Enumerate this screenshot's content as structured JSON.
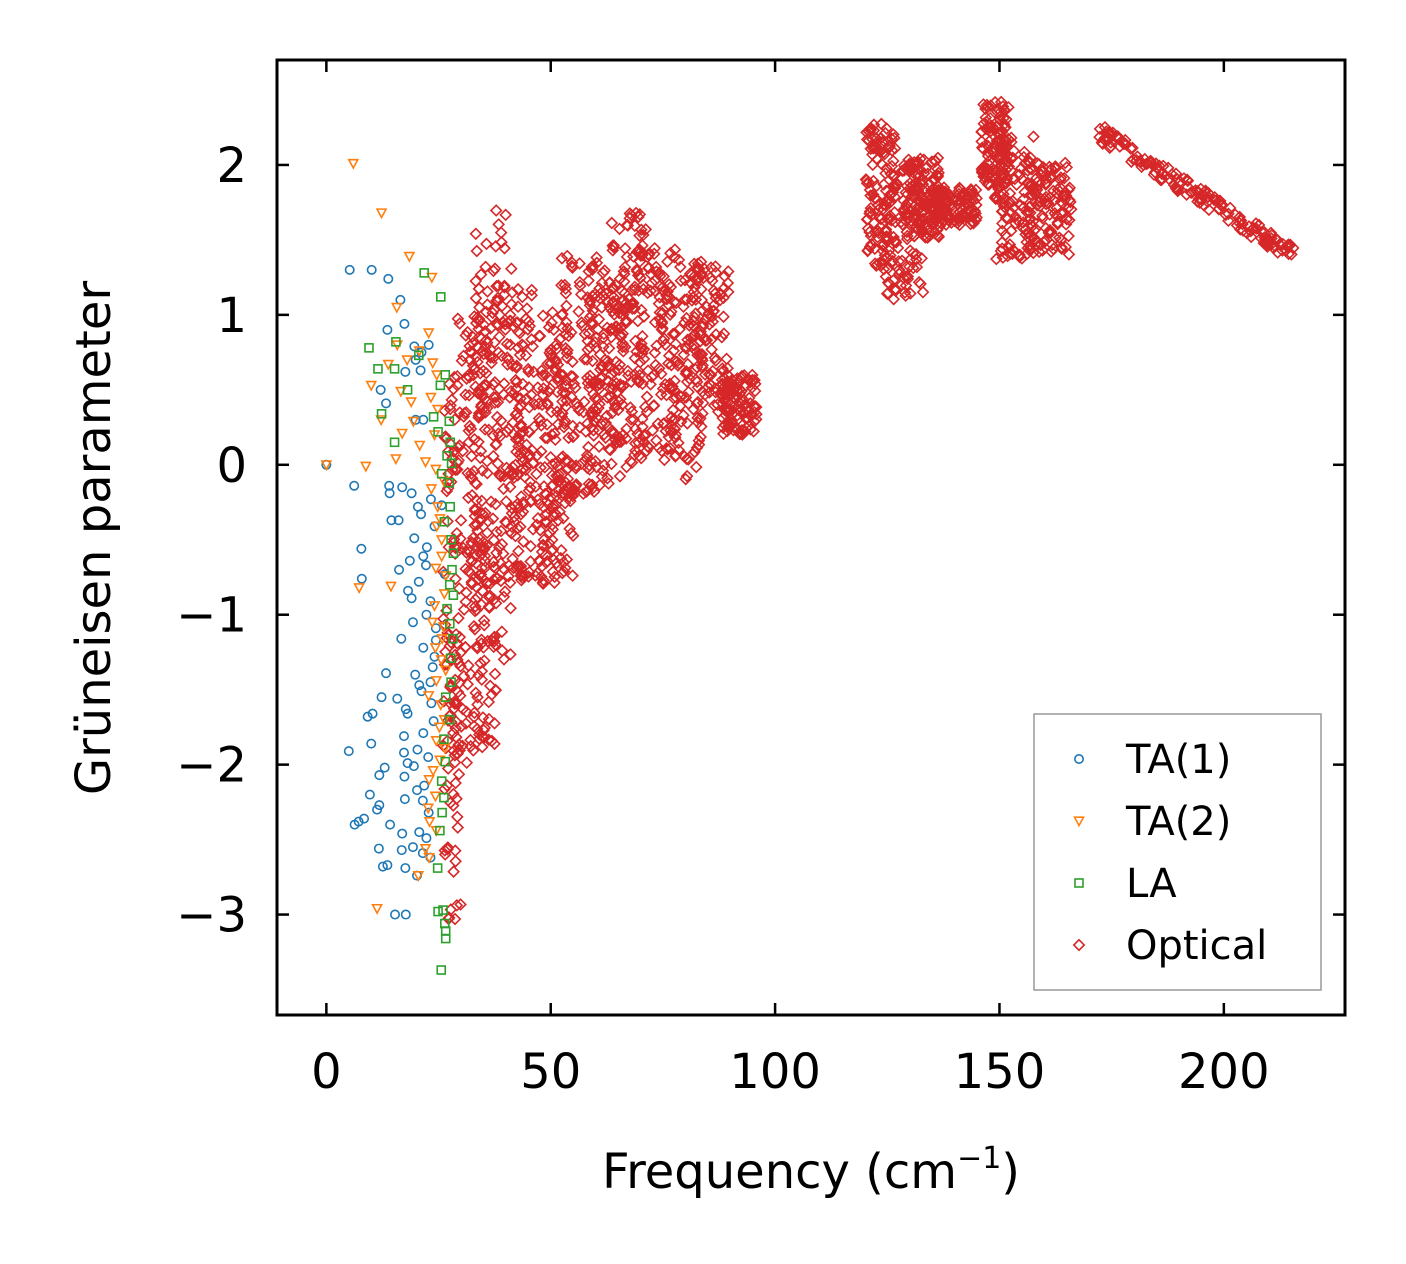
{
  "chart_data": {
    "type": "scatter",
    "title": "",
    "xlabel": "Frequency (cm",
    "xlabel_sup": "−1",
    "xlabel_suffix": ")",
    "ylabel": "Grüneisen parameter",
    "xlim": [
      -11,
      227
    ],
    "ylim": [
      -3.67,
      2.7
    ],
    "x_ticks": [
      0,
      50,
      100,
      150,
      200
    ],
    "x_tick_labels": [
      "0",
      "50",
      "100",
      "150",
      "200"
    ],
    "y_ticks": [
      -3,
      -2,
      -1,
      0,
      1,
      2
    ],
    "y_tick_labels": [
      "−3",
      "−2",
      "−1",
      "0",
      "1",
      "2"
    ],
    "grid": false,
    "legend_position": "lower-right",
    "series": [
      {
        "name": "TA(1)",
        "marker": "circle",
        "color": "#1f77b4",
        "points": [
          [
            0,
            0
          ],
          [
            5.2,
            1.3
          ],
          [
            10.1,
            1.3
          ],
          [
            13.8,
            1.24
          ],
          [
            16.5,
            1.1
          ],
          [
            17.4,
            0.94
          ],
          [
            13.6,
            0.9
          ],
          [
            19.6,
            0.79
          ],
          [
            19.9,
            0.7
          ],
          [
            21.2,
            0.75
          ],
          [
            22.8,
            0.8
          ],
          [
            21.0,
            0.63
          ],
          [
            17.6,
            0.62
          ],
          [
            12.1,
            0.5
          ],
          [
            13.3,
            0.41
          ],
          [
            19.9,
            0.3
          ],
          [
            21.6,
            0.3
          ],
          [
            6.2,
            -0.14
          ],
          [
            14.0,
            -0.14
          ],
          [
            14.1,
            -0.19
          ],
          [
            16.9,
            -0.15
          ],
          [
            19.0,
            -0.19
          ],
          [
            20.4,
            -0.28
          ],
          [
            23.3,
            -0.23
          ],
          [
            25.7,
            -0.27
          ],
          [
            21.1,
            -0.33
          ],
          [
            14.5,
            -0.37
          ],
          [
            16.1,
            -0.37
          ],
          [
            24.1,
            -0.41
          ],
          [
            19.6,
            -0.49
          ],
          [
            7.8,
            -0.56
          ],
          [
            22.4,
            -0.55
          ],
          [
            21.6,
            -0.61
          ],
          [
            18.6,
            -0.64
          ],
          [
            22.2,
            -0.67
          ],
          [
            16.2,
            -0.7
          ],
          [
            26.4,
            -0.73
          ],
          [
            7.9,
            -0.76
          ],
          [
            20.6,
            -0.78
          ],
          [
            18.2,
            -0.84
          ],
          [
            19.0,
            -0.89
          ],
          [
            23.2,
            -0.91
          ],
          [
            22.3,
            -1.0
          ],
          [
            19.3,
            -1.05
          ],
          [
            24.4,
            -1.09
          ],
          [
            24.4,
            -1.17
          ],
          [
            16.7,
            -1.16
          ],
          [
            21.6,
            -1.22
          ],
          [
            24.1,
            -1.28
          ],
          [
            23.7,
            -1.35
          ],
          [
            19.8,
            -1.4
          ],
          [
            13.3,
            -1.39
          ],
          [
            20.7,
            -1.47
          ],
          [
            21.2,
            -1.51
          ],
          [
            23.2,
            -1.45
          ],
          [
            15.8,
            -1.56
          ],
          [
            12.3,
            -1.55
          ],
          [
            23.4,
            -1.59
          ],
          [
            17.7,
            -1.63
          ],
          [
            18.1,
            -1.66
          ],
          [
            9.2,
            -1.68
          ],
          [
            10.3,
            -1.66
          ],
          [
            23.9,
            -1.71
          ],
          [
            21.6,
            -1.79
          ],
          [
            17.3,
            -1.81
          ],
          [
            10.0,
            -1.86
          ],
          [
            20.3,
            -1.9
          ],
          [
            5.0,
            -1.91
          ],
          [
            17.3,
            -1.92
          ],
          [
            22.7,
            -1.95
          ],
          [
            19.5,
            -2.01
          ],
          [
            18.1,
            -1.99
          ],
          [
            13.0,
            -2.02
          ],
          [
            11.8,
            -2.07
          ],
          [
            17.4,
            -2.08
          ],
          [
            21.8,
            -2.14
          ],
          [
            20.2,
            -2.17
          ],
          [
            9.7,
            -2.2
          ],
          [
            17.5,
            -2.23
          ],
          [
            21.5,
            -2.24
          ],
          [
            11.8,
            -2.27
          ],
          [
            11.3,
            -2.3
          ],
          [
            22.8,
            -2.32
          ],
          [
            8.4,
            -2.36
          ],
          [
            7.2,
            -2.38
          ],
          [
            6.3,
            -2.4
          ],
          [
            14.2,
            -2.4
          ],
          [
            20.7,
            -2.45
          ],
          [
            16.9,
            -2.46
          ],
          [
            22.3,
            -2.49
          ],
          [
            19.3,
            -2.55
          ],
          [
            11.7,
            -2.56
          ],
          [
            16.8,
            -2.57
          ],
          [
            21.5,
            -2.59
          ],
          [
            23.2,
            -2.62
          ],
          [
            12.6,
            -2.68
          ],
          [
            13.6,
            -2.67
          ],
          [
            17.6,
            -2.69
          ],
          [
            20.2,
            -2.74
          ],
          [
            15.3,
            -3.0
          ],
          [
            17.7,
            -3.0
          ]
        ]
      },
      {
        "name": "TA(2)",
        "marker": "triangle-down",
        "color": "#ff7f0e",
        "points": [
          [
            0,
            0
          ],
          [
            6.0,
            2.01
          ],
          [
            12.3,
            1.68
          ],
          [
            18.5,
            1.39
          ],
          [
            23.5,
            1.25
          ],
          [
            15.7,
            1.05
          ],
          [
            22.8,
            0.88
          ],
          [
            15.8,
            0.8
          ],
          [
            20.7,
            0.76
          ],
          [
            18.0,
            0.7
          ],
          [
            23.7,
            0.68
          ],
          [
            13.8,
            0.67
          ],
          [
            24.6,
            0.6
          ],
          [
            10.0,
            0.53
          ],
          [
            16.6,
            0.49
          ],
          [
            23.3,
            0.45
          ],
          [
            18.9,
            0.42
          ],
          [
            24.8,
            0.37
          ],
          [
            12.2,
            0.3
          ],
          [
            19.4,
            0.29
          ],
          [
            16.9,
            0.21
          ],
          [
            24.1,
            0.2
          ],
          [
            20.8,
            0.13
          ],
          [
            15.5,
            0.04
          ],
          [
            22.1,
            0.02
          ],
          [
            8.8,
            -0.01
          ],
          [
            24.4,
            -0.03
          ],
          [
            26.2,
            -0.11
          ],
          [
            23.4,
            -0.16
          ],
          [
            24.8,
            -0.28
          ],
          [
            25.3,
            -0.36
          ],
          [
            24.6,
            -0.41
          ],
          [
            25.7,
            -0.5
          ],
          [
            25.7,
            -0.61
          ],
          [
            24.4,
            -0.69
          ],
          [
            26.6,
            -0.74
          ],
          [
            7.3,
            -0.82
          ],
          [
            14.4,
            -0.81
          ],
          [
            26.3,
            -0.86
          ],
          [
            24.1,
            -0.94
          ],
          [
            23.6,
            -1.05
          ],
          [
            26.1,
            -1.08
          ],
          [
            25.8,
            -1.16
          ],
          [
            24.3,
            -1.22
          ],
          [
            25.6,
            -1.3
          ],
          [
            26.6,
            -1.37
          ],
          [
            24.5,
            -1.44
          ],
          [
            22.8,
            -1.54
          ],
          [
            25.5,
            -1.6
          ],
          [
            26.3,
            -1.7
          ],
          [
            25.2,
            -1.75
          ],
          [
            24.5,
            -1.84
          ],
          [
            26.4,
            -1.89
          ],
          [
            25.3,
            -1.97
          ],
          [
            23.8,
            -2.04
          ],
          [
            22.9,
            -2.1
          ],
          [
            24.3,
            -2.21
          ],
          [
            22.7,
            -2.29
          ],
          [
            23.0,
            -2.38
          ],
          [
            24.5,
            -2.44
          ],
          [
            22.1,
            -2.56
          ],
          [
            22.9,
            -2.62
          ],
          [
            20.5,
            -2.74
          ],
          [
            11.3,
            -2.96
          ]
        ]
      },
      {
        "name": "LA",
        "marker": "square",
        "color": "#2ca02c",
        "points": [
          [
            21.8,
            1.28
          ],
          [
            25.5,
            1.12
          ],
          [
            9.5,
            0.78
          ],
          [
            15.5,
            0.82
          ],
          [
            20.6,
            0.73
          ],
          [
            11.5,
            0.64
          ],
          [
            26.5,
            0.6
          ],
          [
            15.2,
            0.64
          ],
          [
            18.1,
            0.5
          ],
          [
            25.4,
            0.53
          ],
          [
            12.3,
            0.34
          ],
          [
            23.9,
            0.32
          ],
          [
            27.4,
            0.29
          ],
          [
            24.9,
            0.22
          ],
          [
            15.2,
            0.15
          ],
          [
            27.6,
            0.15
          ],
          [
            26.9,
            0.06
          ],
          [
            27.9,
            0.01
          ],
          [
            25.7,
            -0.06
          ],
          [
            27.4,
            -0.12
          ],
          [
            27.6,
            -0.28
          ],
          [
            26.3,
            -0.38
          ],
          [
            27.8,
            -0.5
          ],
          [
            28.3,
            -0.59
          ],
          [
            28.0,
            -0.7
          ],
          [
            27.5,
            -0.8
          ],
          [
            28.3,
            -0.87
          ],
          [
            26.9,
            -0.96
          ],
          [
            27.5,
            -1.06
          ],
          [
            28.2,
            -1.16
          ],
          [
            27.7,
            -1.29
          ],
          [
            27.8,
            -1.45
          ],
          [
            26.6,
            -1.55
          ],
          [
            27.5,
            -1.7
          ],
          [
            26.2,
            -1.83
          ],
          [
            26.5,
            -1.98
          ],
          [
            25.7,
            -2.11
          ],
          [
            26.2,
            -2.22
          ],
          [
            25.8,
            -2.32
          ],
          [
            25.3,
            -2.44
          ],
          [
            24.8,
            -2.69
          ],
          [
            24.9,
            -2.98
          ],
          [
            26.0,
            -2.97
          ],
          [
            26.4,
            -3.06
          ],
          [
            26.6,
            -3.11
          ],
          [
            26.6,
            -3.16
          ],
          [
            25.6,
            -3.37
          ]
        ]
      },
      {
        "name": "Optical",
        "marker": "diamond",
        "color": "#d62728",
        "clusters": [
          {
            "x": [
              26,
              30
            ],
            "y": [
              -3.05,
              0.6
            ]
          },
          {
            "x": [
              29,
              36
            ],
            "y": [
              -2.0,
              1.0
            ]
          },
          {
            "x": [
              31,
              38
            ],
            "y": [
              -1.9,
              1.3
            ]
          },
          {
            "x": [
              33,
              42
            ],
            "y": [
              -1.3,
              1.8
            ]
          },
          {
            "x": [
              38,
              46
            ],
            "y": [
              -0.85,
              1.25
            ]
          },
          {
            "x": [
              42,
              52
            ],
            "y": [
              -0.8,
              1.05
            ]
          },
          {
            "x": [
              47,
              55
            ],
            "y": [
              -0.75,
              0.9
            ]
          },
          {
            "x": [
              52,
              62
            ],
            "y": [
              -0.2,
              1.4
            ]
          },
          {
            "x": [
              58,
              67
            ],
            "y": [
              -0.15,
              1.3
            ]
          },
          {
            "x": [
              63,
              72
            ],
            "y": [
              0.0,
              1.68
            ]
          },
          {
            "x": [
              68,
              78
            ],
            "y": [
              0.05,
              1.45
            ]
          },
          {
            "x": [
              74,
              84
            ],
            "y": [
              -0.1,
              1.4
            ]
          },
          {
            "x": [
              80,
              90
            ],
            "y": [
              0.35,
              1.35
            ]
          },
          {
            "x": [
              88,
              96
            ],
            "y": [
              0.2,
              0.6
            ]
          },
          {
            "x": [
              120,
              127
            ],
            "y": [
              1.3,
              2.28
            ]
          },
          {
            "x": [
              124,
              133
            ],
            "y": [
              1.1,
              2.0
            ]
          },
          {
            "x": [
              129,
              137
            ],
            "y": [
              1.5,
              2.05
            ]
          },
          {
            "x": [
              135,
              145
            ],
            "y": [
              1.6,
              1.85
            ]
          },
          {
            "x": [
              146,
              152
            ],
            "y": [
              1.85,
              2.42
            ]
          },
          {
            "x": [
              149,
              158
            ],
            "y": [
              1.37,
              2.2
            ]
          },
          {
            "x": [
              156,
              166
            ],
            "y": [
              1.4,
              2.02
            ]
          }
        ],
        "lines": [
          {
            "from": [
              172,
              2.22
            ],
            "to": [
              216,
              1.39
            ],
            "spread": 0.06
          }
        ]
      }
    ]
  }
}
